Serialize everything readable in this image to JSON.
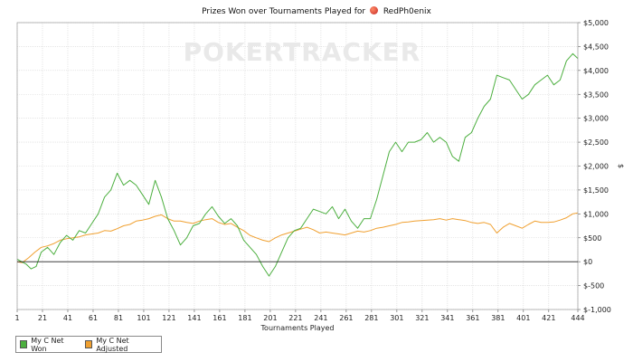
{
  "header": {
    "title_prefix": "Prizes Won over Tournaments Played for",
    "player_name": "RedPh0enix",
    "watermark": "POKERTRACKER"
  },
  "legend": {
    "items": [
      {
        "label": "My C Net Won",
        "color": "#4caf3f"
      },
      {
        "label": "My C Net Adjusted",
        "color": "#f0a030"
      }
    ]
  },
  "chart_data": {
    "type": "line",
    "title": "Prizes Won over Tournaments Played for RedPh0enix",
    "xlabel": "Tournaments Played",
    "ylabel": "$",
    "xlim": [
      1,
      444
    ],
    "ylim": [
      -1000,
      5000
    ],
    "x_ticks": [
      1,
      21,
      41,
      61,
      81,
      101,
      121,
      141,
      161,
      181,
      201,
      221,
      241,
      261,
      281,
      301,
      321,
      341,
      361,
      381,
      401,
      421,
      444
    ],
    "y_ticks": [
      -1000,
      -500,
      0,
      500,
      1000,
      1500,
      2000,
      2500,
      3000,
      3500,
      4000,
      4500,
      5000
    ],
    "y_tick_labels": [
      "$-1,000",
      "$-500",
      "$0",
      "$500",
      "$1,000",
      "$1,500",
      "$2,000",
      "$2,500",
      "$3,000",
      "$3,500",
      "$4,000",
      "$4,500",
      "$5,000"
    ],
    "grid": true,
    "y_axis_side": "right",
    "legend_position": "bottom-left",
    "series": [
      {
        "name": "My C Net Won",
        "color": "#4caf3f",
        "x": [
          1,
          8,
          12,
          16,
          20,
          25,
          30,
          35,
          40,
          45,
          50,
          55,
          60,
          65,
          70,
          75,
          80,
          85,
          90,
          95,
          100,
          105,
          110,
          115,
          120,
          125,
          130,
          135,
          140,
          145,
          150,
          155,
          160,
          165,
          170,
          175,
          180,
          185,
          190,
          195,
          200,
          205,
          210,
          215,
          220,
          225,
          230,
          235,
          240,
          245,
          250,
          255,
          260,
          265,
          270,
          275,
          280,
          285,
          290,
          295,
          300,
          305,
          310,
          315,
          320,
          325,
          330,
          335,
          340,
          345,
          350,
          355,
          360,
          365,
          370,
          375,
          380,
          385,
          390,
          395,
          400,
          405,
          410,
          415,
          420,
          425,
          430,
          435,
          440,
          444
        ],
        "y": [
          50,
          -50,
          -150,
          -100,
          200,
          300,
          150,
          400,
          550,
          450,
          650,
          600,
          800,
          1000,
          1350,
          1500,
          1850,
          1600,
          1700,
          1600,
          1400,
          1200,
          1700,
          1350,
          900,
          650,
          350,
          500,
          750,
          800,
          1000,
          1150,
          950,
          800,
          900,
          750,
          450,
          300,
          150,
          -100,
          -300,
          -100,
          200,
          500,
          650,
          700,
          900,
          1100,
          1050,
          1000,
          1150,
          900,
          1100,
          850,
          700,
          900,
          900,
          1300,
          1800,
          2300,
          2500,
          2300,
          2500,
          2500,
          2550,
          2700,
          2500,
          2600,
          2500,
          2200,
          2100,
          2600,
          2700,
          3000,
          3250,
          3400,
          3900,
          3850,
          3800,
          3600,
          3400,
          3500,
          3700,
          3800,
          3900,
          3700,
          3800,
          4200,
          4350,
          4250
        ]
      },
      {
        "name": "My C Net Adjusted",
        "color": "#f0a030",
        "x": [
          1,
          5,
          10,
          15,
          20,
          25,
          30,
          35,
          40,
          45,
          50,
          55,
          60,
          65,
          70,
          75,
          80,
          85,
          90,
          95,
          100,
          105,
          110,
          115,
          120,
          125,
          130,
          135,
          140,
          145,
          150,
          155,
          160,
          165,
          170,
          175,
          180,
          185,
          190,
          195,
          200,
          205,
          210,
          215,
          220,
          225,
          230,
          235,
          240,
          245,
          250,
          255,
          260,
          265,
          270,
          275,
          280,
          285,
          290,
          295,
          300,
          305,
          310,
          315,
          320,
          325,
          330,
          335,
          340,
          345,
          350,
          355,
          360,
          365,
          370,
          375,
          380,
          385,
          390,
          395,
          400,
          405,
          410,
          415,
          420,
          425,
          430,
          435,
          440,
          444
        ],
        "y": [
          0,
          -20,
          80,
          200,
          300,
          330,
          380,
          450,
          480,
          500,
          520,
          560,
          580,
          600,
          650,
          640,
          690,
          750,
          780,
          850,
          870,
          900,
          950,
          980,
          900,
          850,
          850,
          820,
          800,
          850,
          880,
          900,
          820,
          780,
          800,
          720,
          650,
          550,
          500,
          450,
          420,
          500,
          560,
          600,
          640,
          680,
          720,
          670,
          600,
          620,
          600,
          580,
          560,
          600,
          640,
          620,
          650,
          700,
          720,
          750,
          780,
          820,
          830,
          850,
          860,
          870,
          880,
          900,
          870,
          900,
          880,
          860,
          820,
          800,
          820,
          780,
          600,
          720,
          800,
          750,
          700,
          780,
          850,
          820,
          820,
          830,
          870,
          920,
          1000,
          1020
        ]
      }
    ]
  }
}
